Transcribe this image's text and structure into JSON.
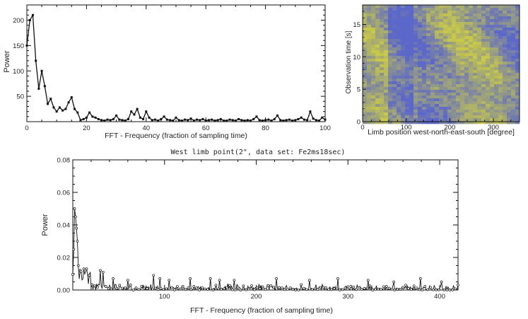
{
  "chart_data": [
    {
      "type": "line",
      "xlabel": "FFT - Frequency (fraction of sampling time)",
      "ylabel": "Power",
      "xlim": [
        0,
        100
      ],
      "ylim": [
        0,
        230
      ],
      "x_ticks": [
        "0",
        "20",
        "40",
        "60",
        "80",
        "100"
      ],
      "y_ticks": [
        "50",
        "100",
        "150",
        "200"
      ],
      "x": [
        0,
        1,
        2,
        3,
        4,
        5,
        6,
        7,
        8,
        9,
        10,
        11,
        12,
        13,
        14,
        15,
        16,
        17,
        18,
        19,
        20,
        21,
        22,
        23,
        24,
        25,
        26,
        27,
        28,
        29,
        30,
        31,
        32,
        33,
        34,
        35,
        36,
        37,
        38,
        39,
        40,
        41,
        42,
        43,
        44,
        45,
        46,
        47,
        48,
        49,
        50,
        51,
        52,
        53,
        54,
        55,
        56,
        57,
        58,
        59,
        60,
        61,
        62,
        63,
        64,
        65,
        66,
        67,
        68,
        69,
        70,
        71,
        72,
        73,
        74,
        75,
        76,
        77,
        78,
        79,
        80,
        81,
        82,
        83,
        84,
        85,
        86,
        87,
        88,
        89,
        90,
        91,
        92,
        93,
        94,
        95,
        96,
        97,
        98,
        99,
        100
      ],
      "values": [
        150,
        200,
        210,
        120,
        65,
        100,
        70,
        35,
        45,
        28,
        20,
        28,
        22,
        25,
        38,
        48,
        25,
        18,
        3,
        5,
        8,
        18,
        10,
        8,
        5,
        3,
        2,
        4,
        3,
        5,
        12,
        4,
        3,
        2,
        5,
        20,
        14,
        25,
        8,
        5,
        20,
        8,
        3,
        4,
        2,
        5,
        10,
        4,
        3,
        2,
        8,
        3,
        2,
        4,
        3,
        6,
        2,
        4,
        3,
        5,
        2,
        3,
        4,
        2,
        3,
        5,
        2,
        2,
        4,
        3,
        2,
        5,
        3,
        2,
        3,
        2,
        5,
        10,
        3,
        2,
        3,
        4,
        2,
        5,
        12,
        3,
        2,
        3,
        4,
        2,
        3,
        5,
        8,
        4,
        3,
        20,
        6,
        3,
        2,
        8,
        4
      ],
      "markers": true,
      "grid": false
    },
    {
      "type": "heatmap",
      "xlabel": "Limb position west-north-east-south [degree]",
      "ylabel": "Observation time [s]",
      "xlim": [
        0,
        360
      ],
      "ylim": [
        0,
        18
      ],
      "x_ticks": [
        "0",
        "100",
        "200",
        "300"
      ],
      "y_ticks": [
        "0",
        "5",
        "10",
        "15"
      ],
      "colors": [
        "#5b67c9",
        "#c8c84a"
      ]
    },
    {
      "type": "line",
      "title": "West limb point(2\", data set: Fe2ms18sec)",
      "xlabel": "FFT - Frequency (fraction of sampling time)",
      "ylabel": "Power",
      "xlim": [
        0,
        420
      ],
      "ylim": [
        0,
        0.08
      ],
      "x_ticks": [
        "100",
        "200",
        "300",
        "400"
      ],
      "y_ticks": [
        "0.00",
        "0.02",
        "0.04",
        "0.06",
        "0.08"
      ],
      "peaks": [
        {
          "x": 1,
          "y": 0.025
        },
        {
          "x": 2,
          "y": 0.05
        },
        {
          "x": 3,
          "y": 0.045
        },
        {
          "x": 4,
          "y": 0.038
        },
        {
          "x": 5,
          "y": 0.03
        },
        {
          "x": 6,
          "y": 0.015
        },
        {
          "x": 8,
          "y": 0.012
        },
        {
          "x": 12,
          "y": 0.013
        },
        {
          "x": 15,
          "y": 0.013
        },
        {
          "x": 30,
          "y": 0.012
        },
        {
          "x": 33,
          "y": 0.011
        },
        {
          "x": 44,
          "y": 0.007
        },
        {
          "x": 60,
          "y": 0.006
        },
        {
          "x": 88,
          "y": 0.009
        },
        {
          "x": 95,
          "y": 0.007
        },
        {
          "x": 105,
          "y": 0.006
        },
        {
          "x": 128,
          "y": 0.007
        },
        {
          "x": 150,
          "y": 0.007
        },
        {
          "x": 160,
          "y": 0.006
        },
        {
          "x": 176,
          "y": 0.006
        },
        {
          "x": 222,
          "y": 0.007
        },
        {
          "x": 258,
          "y": 0.006
        },
        {
          "x": 289,
          "y": 0.007
        },
        {
          "x": 322,
          "y": 0.006
        },
        {
          "x": 350,
          "y": 0.005
        },
        {
          "x": 379,
          "y": 0.007
        },
        {
          "x": 402,
          "y": 0.005
        }
      ],
      "markers": true,
      "grid": false
    }
  ]
}
